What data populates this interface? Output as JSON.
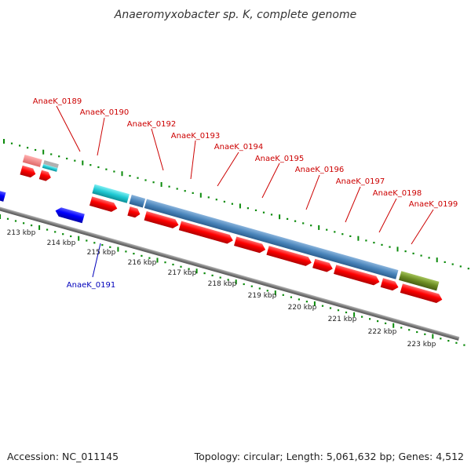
{
  "title": "Anaeromyxobacter sp. K, complete genome",
  "footer": {
    "accession": "Accession: NC_011145",
    "topology": "Topology: circular; Length: 5,061,632 bp; Genes: 4,512"
  },
  "colors": {
    "forward_label": "#cc0000",
    "reverse_label": "#0000bb",
    "cds_forward": "#ff0000",
    "cds_reverse": "#0000ff",
    "cog_steelblue": "#4a85bb",
    "cog_cyan": "#1ec8d2",
    "cog_olive": "#6b8c22",
    "cog_pink": "#f08080",
    "backbone": "#7a7a7a",
    "ticks": "#0a8a0a"
  },
  "gene_labels": [
    {
      "id": "AnaeK_0189",
      "strand": "forward"
    },
    {
      "id": "AnaeK_0190",
      "strand": "forward"
    },
    {
      "id": "AnaeK_0192",
      "strand": "forward"
    },
    {
      "id": "AnaeK_0193",
      "strand": "forward"
    },
    {
      "id": "AnaeK_0194",
      "strand": "forward"
    },
    {
      "id": "AnaeK_0195",
      "strand": "forward"
    },
    {
      "id": "AnaeK_0196",
      "strand": "forward"
    },
    {
      "id": "AnaeK_0197",
      "strand": "forward"
    },
    {
      "id": "AnaeK_0198",
      "strand": "forward"
    },
    {
      "id": "AnaeK_0199",
      "strand": "forward"
    },
    {
      "id": "AnaeK_0191",
      "strand": "reverse"
    }
  ],
  "kbp_labels": [
    "213 kbp",
    "214 kbp",
    "215 kbp",
    "216 kbp",
    "217 kbp",
    "218 kbp",
    "219 kbp",
    "220 kbp",
    "221 kbp",
    "222 kbp",
    "223 kbp"
  ]
}
